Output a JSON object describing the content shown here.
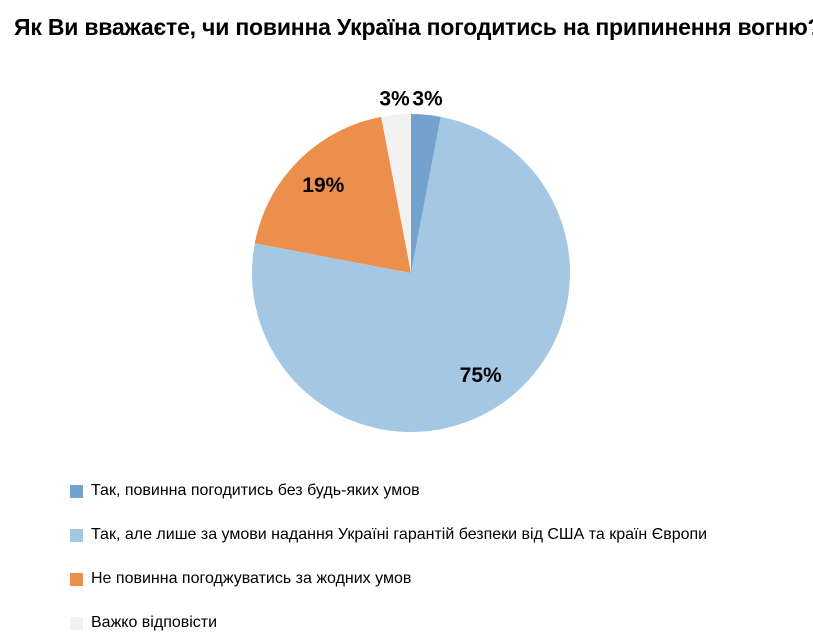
{
  "page": {
    "background_color": "#FFFFFF"
  },
  "chart_data": {
    "type": "pie",
    "title": "Як Ви вважаєте, чи повинна Україна погодитись на припинення вогню?",
    "value_suffix": "%",
    "start_angle_deg": 0,
    "direction": "clockwise",
    "legend_position": "bottom-left",
    "label_color": "#000000",
    "slices": [
      {
        "label": "Так, повинна погодитись без будь-яких умов",
        "value": 3,
        "value_label": "3%",
        "color": "#74A2CE",
        "label_placement": "outside"
      },
      {
        "label": "Так, але лише за умови надання Україні гарантій безпеки від США та країн Європи",
        "value": 75,
        "value_label": "75%",
        "color": "#A4C7E3",
        "label_placement": "inside"
      },
      {
        "label": "Не повинна погоджуватись за жодних умов",
        "value": 19,
        "value_label": "19%",
        "color": "#EC8F4C",
        "label_placement": "inside"
      },
      {
        "label": "Важко відповісти",
        "value": 3,
        "value_label": "3%",
        "color": "#F2F2F2",
        "label_placement": "outside"
      }
    ]
  }
}
